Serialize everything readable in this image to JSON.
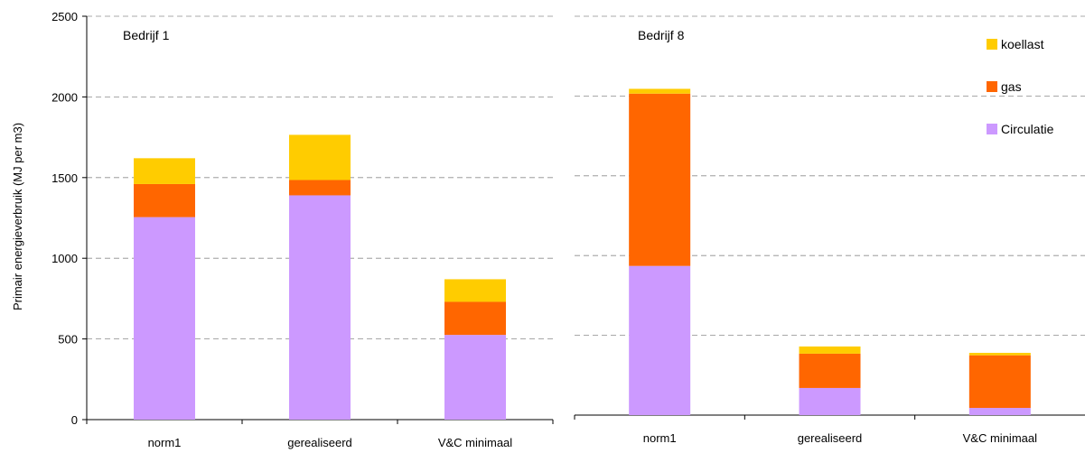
{
  "chart_data": [
    {
      "type": "bar",
      "stacked": true,
      "annotation": "Bedrijf 1",
      "ylabel": "Primair energieverbruik (MJ per m3)",
      "xlabel": "",
      "ylim": [
        0,
        2500
      ],
      "yticks": [
        0,
        500,
        1000,
        1500,
        2000,
        2500
      ],
      "grid": true,
      "categories": [
        "norm1",
        "gerealiseerd",
        "V&C minimaal"
      ],
      "series": [
        {
          "name": "Circulatie",
          "color": "#cc99ff",
          "values": [
            1255,
            1390,
            525
          ]
        },
        {
          "name": "gas",
          "color": "#ff6600",
          "values": [
            205,
            95,
            205
          ]
        },
        {
          "name": "koellast",
          "color": "#ffcc00",
          "values": [
            160,
            280,
            140
          ]
        }
      ]
    },
    {
      "type": "bar",
      "stacked": true,
      "annotation": "Bedrijf 8",
      "ylim": [
        0,
        2500
      ],
      "grid": true,
      "legend_position": "top-right",
      "categories": [
        "norm1",
        "gerealiseerd",
        "V&C minimaal"
      ],
      "series": [
        {
          "name": "Circulatie",
          "color": "#cc99ff",
          "values": [
            935,
            170,
            45
          ]
        },
        {
          "name": "gas",
          "color": "#ff6600",
          "values": [
            1080,
            215,
            330
          ]
        },
        {
          "name": "koellast",
          "color": "#ffcc00",
          "values": [
            30,
            45,
            15
          ]
        }
      ]
    }
  ]
}
